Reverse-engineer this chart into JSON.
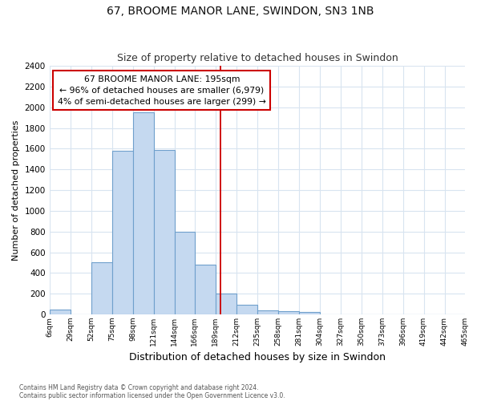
{
  "title1": "67, BROOME MANOR LANE, SWINDON, SN3 1NB",
  "title2": "Size of property relative to detached houses in Swindon",
  "xlabel": "Distribution of detached houses by size in Swindon",
  "ylabel": "Number of detached properties",
  "bin_edges": [
    6,
    29,
    52,
    75,
    98,
    121,
    144,
    166,
    189,
    212,
    235,
    258,
    281,
    304,
    327,
    350,
    373,
    396,
    419,
    442,
    465
  ],
  "bar_heights": [
    50,
    0,
    500,
    1580,
    1950,
    1590,
    800,
    480,
    200,
    90,
    40,
    30,
    20,
    0,
    0,
    0,
    0,
    0,
    0,
    0
  ],
  "bar_color": "#c5d9f0",
  "bar_edge_color": "#6fa0cc",
  "vline_x": 195,
  "vline_color": "#cc0000",
  "annotation_line1": "67 BROOME MANOR LANE: 195sqm",
  "annotation_line2": "← 96% of detached houses are smaller (6,979)",
  "annotation_line3": "4% of semi-detached houses are larger (299) →",
  "annotation_box_facecolor": "#ffffff",
  "annotation_box_edgecolor": "#cc0000",
  "ylim_max": 2400,
  "yticks": [
    0,
    200,
    400,
    600,
    800,
    1000,
    1200,
    1400,
    1600,
    1800,
    2000,
    2200,
    2400
  ],
  "footer1": "Contains HM Land Registry data © Crown copyright and database right 2024.",
  "footer2": "Contains public sector information licensed under the Open Government Licence v3.0.",
  "bg_color": "#ffffff",
  "plot_bg_color": "#ffffff",
  "grid_color": "#d8e4f0"
}
